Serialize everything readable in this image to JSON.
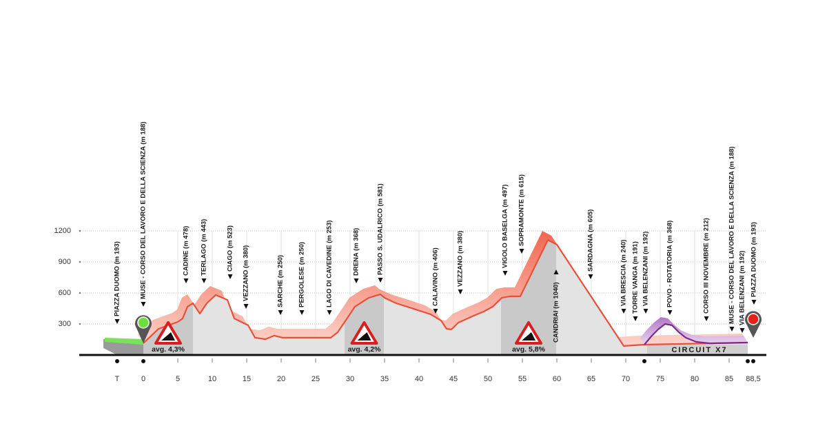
{
  "chart_data": {
    "type": "area",
    "xlim": [
      -9,
      90.5
    ],
    "ylim": [
      0,
      1200
    ],
    "yticks": [
      300,
      600,
      900,
      1200
    ],
    "xticks": [
      {
        "value": -3.8,
        "label": "T"
      },
      0,
      5,
      10,
      15,
      20,
      25,
      30,
      35,
      40,
      45,
      50,
      55,
      60,
      65,
      70,
      75,
      80,
      85,
      {
        "value": 88.5,
        "label": "88,5"
      }
    ],
    "grid": true,
    "profile": {
      "color": "#e8503a",
      "x": [
        0,
        2.2,
        5,
        5.7,
        6.4,
        7.2,
        8.2,
        9.2,
        10.5,
        11.5,
        12.2,
        13.2,
        14.2,
        15.2,
        16.2,
        17.7,
        19,
        20.2,
        27.2,
        28.2,
        29.7,
        30.7,
        32.7,
        34.4,
        35,
        36.7,
        39.2,
        41.7,
        43.2,
        44,
        44.7,
        45.7,
        48.2,
        49.4,
        50.7,
        52,
        53.2,
        54.7,
        58.7,
        60,
        69.7,
        72.7,
        87.7
      ],
      "values": [
        113,
        253,
        320,
        353,
        467,
        500,
        400,
        500,
        580,
        553,
        533,
        353,
        320,
        287,
        167,
        153,
        187,
        167,
        167,
        220,
        367,
        467,
        553,
        587,
        553,
        500,
        447,
        393,
        333,
        253,
        247,
        313,
        387,
        420,
        467,
        553,
        567,
        567,
        1113,
        1067,
        87,
        100,
        120
      ]
    },
    "circuit": {
      "label": "CIRCUIT X7",
      "color": "#7b2a8c",
      "x": [
        72.7,
        73.7,
        74.7,
        75.7,
        76.7,
        77.7,
        78.7,
        80.2,
        82.2,
        87.7
      ],
      "values": [
        100,
        180,
        247,
        300,
        287,
        220,
        167,
        127,
        113,
        120
      ]
    },
    "climbs": [
      {
        "start": 0,
        "end": 7.2,
        "label": "avg. 4,3%"
      },
      {
        "start": 29.2,
        "end": 34.9,
        "label": "avg. 4,2%"
      },
      {
        "start": 51.9,
        "end": 59.9,
        "label": "avg. 5,8%"
      }
    ],
    "waypoints": [
      {
        "km": -3.8,
        "label": "PIAZZA DUOMO (m 193)"
      },
      {
        "km": 0,
        "label": "MUSE - CORSO DEL LAVORO E DELLA SCIENZA (m 188)"
      },
      {
        "km": 6.2,
        "label": "CADINE (m 478)"
      },
      {
        "km": 8.8,
        "label": "TERLAGO (m 443)"
      },
      {
        "km": 12.6,
        "label": "CIAGO (m 523)"
      },
      {
        "km": 14.9,
        "label": "VEZZANO (m 380)"
      },
      {
        "km": 19.9,
        "label": "SARCHE (m 250)"
      },
      {
        "km": 23,
        "label": "PERGOLESE (m 250)"
      },
      {
        "km": 27,
        "label": "LAGO DI CAVEDINE (m 253)"
      },
      {
        "km": 30.9,
        "label": "DRENA (m 368)"
      },
      {
        "km": 34.4,
        "label": "PASSO S. UDALRICO (m 581)"
      },
      {
        "km": 42.4,
        "label": "CALAVINO (m 406)"
      },
      {
        "km": 46,
        "label": "VEZZANO (m 380)"
      },
      {
        "km": 52.5,
        "label": "VIGOLO BASELGA  (m 497)"
      },
      {
        "km": 54.9,
        "label": "SOPRAMONTE (m 615)"
      },
      {
        "km": 59.9,
        "label": "CANDRIAI (m 1040)"
      },
      {
        "km": 64.9,
        "label": "SARDAGNA (m 605)"
      },
      {
        "km": 69.7,
        "label": "VIA BRESCIA (m 240)"
      },
      {
        "km": 71.4,
        "label": "TORRE VANGA (m 191)"
      },
      {
        "km": 72.9,
        "label": "VIA BELENZANI (m 192)"
      },
      {
        "km": 76.4,
        "label": "POVO - ROTATORIA (m 368)"
      },
      {
        "km": 81.7,
        "label": "CORSO III NOVEMBRE (m 212)"
      },
      {
        "km": 85.4,
        "label": "MUSE - CORSO DEL LAVORO E DELLA SCIENZA (m 188)"
      },
      {
        "km": 86.9,
        "label": "VIA BELENZANI (m 192)"
      },
      {
        "km": 88.6,
        "label": "PIAZZA DUOMO (m 193)"
      }
    ]
  }
}
